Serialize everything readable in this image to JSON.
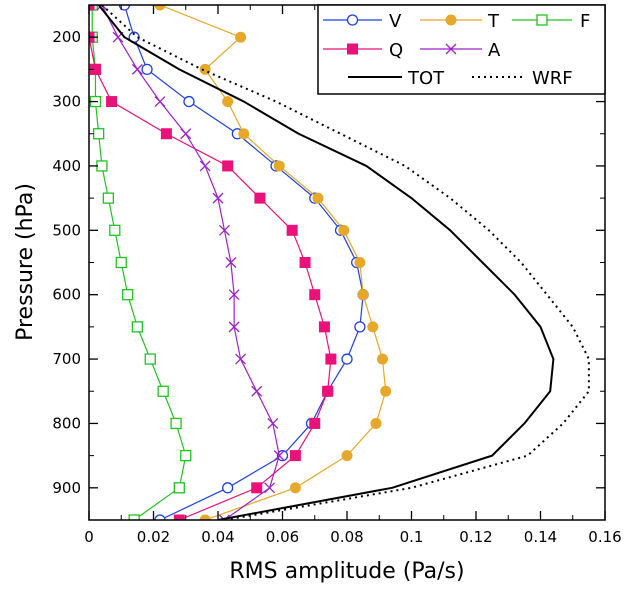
{
  "chart_data": {
    "type": "line",
    "xlabel": "RMS amplitude (Pa/s)",
    "ylabel": "Pressure (hPa)",
    "xlim": [
      0,
      0.16
    ],
    "ylim": [
      950,
      150
    ],
    "y_inverted": true,
    "x_ticks": [
      0,
      0.02,
      0.04,
      0.06,
      0.08,
      0.1,
      0.12,
      0.14,
      0.16
    ],
    "x_tick_labels": [
      "0",
      "0.02",
      "0.04",
      "0.06",
      "0.08",
      "0.1",
      "0.12",
      "0.14",
      "0.16"
    ],
    "y_ticks": [
      200,
      300,
      400,
      500,
      600,
      700,
      800,
      900
    ],
    "y_tick_labels": [
      "200",
      "300",
      "400",
      "500",
      "600",
      "700",
      "800",
      "900"
    ],
    "grid": false,
    "legend_position": "top-right",
    "pressure_levels": [
      150,
      200,
      250,
      300,
      350,
      400,
      450,
      500,
      550,
      600,
      650,
      700,
      750,
      800,
      850,
      900,
      950
    ],
    "series": [
      {
        "name": "V",
        "color": "#1f3fe0",
        "marker": "circle-open",
        "values": [
          0.011,
          0.014,
          0.018,
          0.031,
          0.046,
          0.058,
          0.07,
          0.078,
          0.083,
          0.085,
          0.084,
          0.08,
          0.074,
          0.069,
          0.06,
          0.043,
          0.022
        ]
      },
      {
        "name": "T",
        "color": "#e6a82a",
        "marker": "circle-filled",
        "values": [
          0.022,
          0.047,
          0.036,
          0.043,
          0.048,
          0.059,
          0.071,
          0.079,
          0.084,
          0.085,
          0.088,
          0.091,
          0.092,
          0.089,
          0.08,
          0.064,
          0.036
        ]
      },
      {
        "name": "F",
        "color": "#22c122",
        "marker": "square-open",
        "values": [
          0.001,
          0.001,
          0.002,
          0.002,
          0.003,
          0.004,
          0.006,
          0.008,
          0.01,
          0.012,
          0.015,
          0.019,
          0.023,
          0.027,
          0.03,
          0.028,
          0.014
        ]
      },
      {
        "name": "Q",
        "color": "#e8127a",
        "marker": "square-filled",
        "values": [
          0.0,
          0.0,
          0.002,
          0.007,
          0.024,
          0.043,
          0.053,
          0.063,
          0.067,
          0.07,
          0.073,
          0.075,
          0.074,
          0.07,
          0.064,
          0.052,
          0.028
        ]
      },
      {
        "name": "A",
        "color": "#9a22c8",
        "marker": "x",
        "values": [
          0.004,
          0.009,
          0.015,
          0.022,
          0.03,
          0.036,
          0.04,
          0.042,
          0.044,
          0.045,
          0.045,
          0.047,
          0.052,
          0.057,
          0.059,
          0.056,
          0.042
        ]
      },
      {
        "name": "TOT",
        "color": "#000000",
        "marker": "none",
        "dash": "solid",
        "values": [
          0.003,
          0.011,
          0.028,
          0.048,
          0.065,
          0.086,
          0.1,
          0.112,
          0.122,
          0.132,
          0.14,
          0.144,
          0.143,
          0.135,
          0.125,
          0.094,
          0.04
        ]
      },
      {
        "name": "WRF",
        "color": "#000000",
        "marker": "none",
        "dash": "dotted",
        "values": [
          0.004,
          0.015,
          0.035,
          0.058,
          0.078,
          0.098,
          0.112,
          0.124,
          0.134,
          0.142,
          0.15,
          0.155,
          0.155,
          0.147,
          0.136,
          0.1,
          0.042
        ]
      }
    ]
  }
}
